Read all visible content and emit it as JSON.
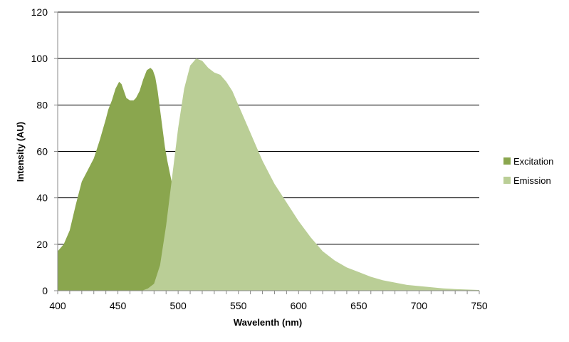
{
  "chart_data": {
    "type": "area",
    "title": "",
    "xlabel": "Wavelenth (nm)",
    "ylabel": "Intensity (AU)",
    "xlim": [
      400,
      750
    ],
    "ylim": [
      0,
      120
    ],
    "x_ticks": [
      400,
      450,
      500,
      550,
      600,
      650,
      700,
      750
    ],
    "y_ticks": [
      0,
      20,
      40,
      60,
      80,
      100,
      120
    ],
    "grid": "horizontal",
    "legend_position": "right",
    "series": [
      {
        "name": "Excitation",
        "color": "#8aa64e",
        "x": [
          400,
          405,
          410,
          415,
          420,
          425,
          430,
          435,
          440,
          442,
          445,
          448,
          451,
          453,
          455,
          457,
          460,
          463,
          465,
          468,
          471,
          474,
          477,
          479,
          481,
          483,
          485,
          487,
          489,
          491,
          493,
          495,
          497,
          499,
          501,
          503,
          505,
          507,
          510
        ],
        "values": [
          17,
          20,
          26,
          37,
          47,
          52,
          57,
          65,
          74,
          78,
          82,
          87,
          90,
          89,
          86,
          83,
          82,
          82,
          83,
          86,
          91,
          95,
          96,
          95,
          92,
          86,
          78,
          70,
          62,
          56,
          51,
          46,
          39,
          29,
          19,
          10,
          4,
          1,
          0
        ]
      },
      {
        "name": "Emission",
        "color": "#bace96",
        "x": [
          465,
          470,
          475,
          480,
          485,
          490,
          495,
          500,
          505,
          510,
          515,
          520,
          525,
          530,
          535,
          540,
          545,
          550,
          555,
          560,
          565,
          570,
          575,
          580,
          590,
          600,
          610,
          620,
          630,
          640,
          650,
          660,
          670,
          680,
          690,
          700,
          710,
          720,
          730,
          740,
          750
        ],
        "values": [
          0,
          0,
          1,
          3,
          11,
          28,
          49,
          70,
          87,
          97,
          100,
          99,
          96,
          94,
          93,
          90,
          86,
          80,
          74,
          68,
          62,
          56,
          51,
          46,
          38,
          30,
          23,
          17,
          13,
          10,
          8,
          6,
          4.5,
          3.5,
          2.5,
          2,
          1.5,
          1,
          0.7,
          0.5,
          0.3
        ]
      }
    ]
  }
}
